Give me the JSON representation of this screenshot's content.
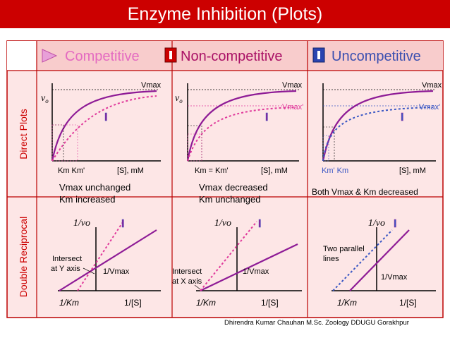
{
  "title": "Enzyme Inhibition (Plots)",
  "row_labels": {
    "direct": "Direct Plots",
    "reciprocal": "Double Reciprocal"
  },
  "colors": {
    "title_bg": "#cc0000",
    "table_bg": "#fde6e6",
    "header_bg": "#f8cccc",
    "border": "#bb0000",
    "curve": "#8e1b96",
    "inhibitor": "#e0399b",
    "blue": "#3a57c4"
  },
  "columns": [
    {
      "header": "Competitive",
      "header_color": "#e46bc1",
      "vmax": "Vmax",
      "vmax_i": "",
      "km_label": "Km  Km'",
      "s_label": "[S], mM",
      "summary1": "Vmax unchanged",
      "summary2": "Km increased",
      "note": "Intersect at Y axis",
      "recip_km": "1/Km",
      "recip_s": "1/[S]",
      "recip_v": "1/Vmax"
    },
    {
      "header": "Non-competitive",
      "header_color": "#aa1166",
      "vmax": "Vmax",
      "vmax_i": "Vmax'",
      "km_label": "Km = Km'",
      "s_label": "[S], mM",
      "summary1": "Vmax decreased",
      "summary2": "Km unchanged",
      "note": "Intersect at X axis",
      "recip_km": "1/Km",
      "recip_s": "1/[S]",
      "recip_v": "1/Vmax"
    },
    {
      "header": "Uncompetitive",
      "header_color": "#3a4fb0",
      "vmax": "Vmax",
      "vmax_i": "Vmax'",
      "km_label": "Km' Km",
      "s_label": "[S], mM",
      "summary1": "Both Vmax & Km decreased",
      "summary2": "",
      "note": "Two parallel lines",
      "recip_km": "1/Km",
      "recip_s": "1/[S]",
      "recip_v": "1/Vmax"
    }
  ],
  "axis_labels": {
    "v0": "vo",
    "inv_v0": "1/vo",
    "inhibitor": "I"
  },
  "credit": "Dhirendra Kumar Chauhan M.Sc. Zoology DDUGU Gorakhpur"
}
